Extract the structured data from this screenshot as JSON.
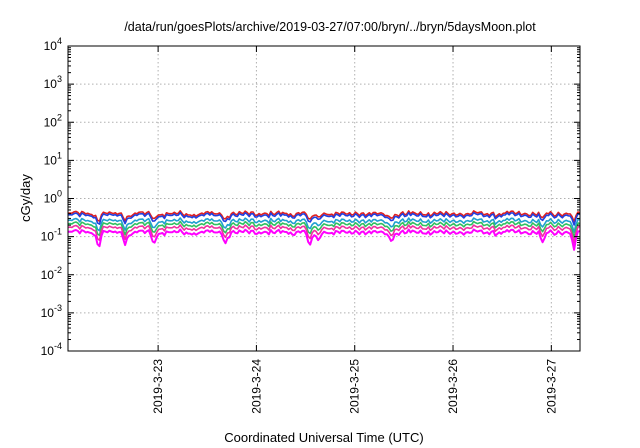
{
  "chart_data": {
    "type": "line",
    "title": "/data/run/goesPlots/archive/2019-03-27/07:00/bryn/../bryn/5daysMoon.plot",
    "xlabel": "Coordinated Universal Time (UTC)",
    "ylabel": "cGy/day",
    "yscale": "log",
    "ylim": [
      0.0001,
      10000
    ],
    "xlim": [
      "2019-03-22T02:00",
      "2019-03-27T07:00"
    ],
    "grid": true,
    "legend": "none",
    "y_ticks": [
      {
        "base": "10",
        "exp": "-4"
      },
      {
        "base": "10",
        "exp": "-3"
      },
      {
        "base": "10",
        "exp": "-2"
      },
      {
        "base": "10",
        "exp": "-1"
      },
      {
        "base": "10",
        "exp": "0"
      },
      {
        "base": "10",
        "exp": "1"
      },
      {
        "base": "10",
        "exp": "2"
      },
      {
        "base": "10",
        "exp": "3"
      },
      {
        "base": "10",
        "exp": "4"
      }
    ],
    "x_ticks": [
      "2019-3-23",
      "2019-3-24",
      "2019-3-25",
      "2019-3-26",
      "2019-3-27"
    ],
    "x_tick_times": [
      "2019-03-23T00:00",
      "2019-03-24T00:00",
      "2019-03-25T00:00",
      "2019-03-26T00:00",
      "2019-03-27T00:00"
    ],
    "series": [
      {
        "color": "#e02020",
        "level": 0.4
      },
      {
        "color": "#2040e0",
        "level": 0.36
      },
      {
        "color": "#20a0d0",
        "level": 0.26
      },
      {
        "color": "#30c060",
        "level": 0.21
      },
      {
        "color": "#f030a0",
        "level": 0.17
      },
      {
        "color": "#ff00ff",
        "level": 0.13
      }
    ],
    "dips": [
      {
        "t": "2019-03-22T09:30",
        "factor": 0.45
      },
      {
        "t": "2019-03-22T16:00",
        "factor": 0.55
      },
      {
        "t": "2019-03-22T23:00",
        "factor": 0.5
      },
      {
        "t": "2019-03-23T16:30",
        "factor": 0.55
      },
      {
        "t": "2019-03-24T13:00",
        "factor": 0.45
      },
      {
        "t": "2019-03-24T15:00",
        "factor": 0.6
      },
      {
        "t": "2019-03-25T09:00",
        "factor": 0.6
      },
      {
        "t": "2019-03-26T22:00",
        "factor": 0.5
      },
      {
        "t": "2019-03-27T05:30",
        "factor": 0.4
      }
    ]
  }
}
